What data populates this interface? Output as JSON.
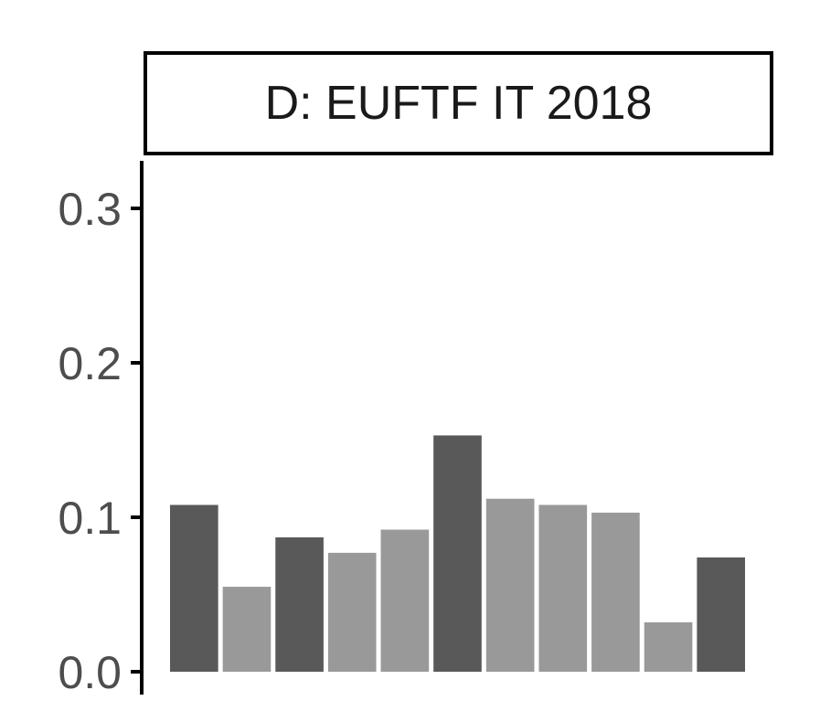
{
  "chart_data": {
    "type": "bar",
    "title": "D: EUFTF IT 2018",
    "xlabel": "",
    "ylabel": "",
    "ylim": [
      0,
      0.3
    ],
    "yticks": [
      0.0,
      0.1,
      0.2,
      0.3
    ],
    "ytick_labels": [
      "0.0",
      "0.1",
      "0.2",
      "0.3"
    ],
    "grid": false,
    "legend": "none",
    "values": [
      0.108,
      0.055,
      0.087,
      0.077,
      0.092,
      0.153,
      0.112,
      0.108,
      0.103,
      0.032,
      0.074
    ],
    "bar_groups": [
      "dark",
      "light",
      "dark",
      "light",
      "light",
      "dark",
      "light",
      "light",
      "light",
      "light",
      "dark"
    ],
    "colors": {
      "dark": "#595959",
      "light": "#999999",
      "axis": "#000000",
      "tick_text": "#4d4d4d"
    }
  }
}
